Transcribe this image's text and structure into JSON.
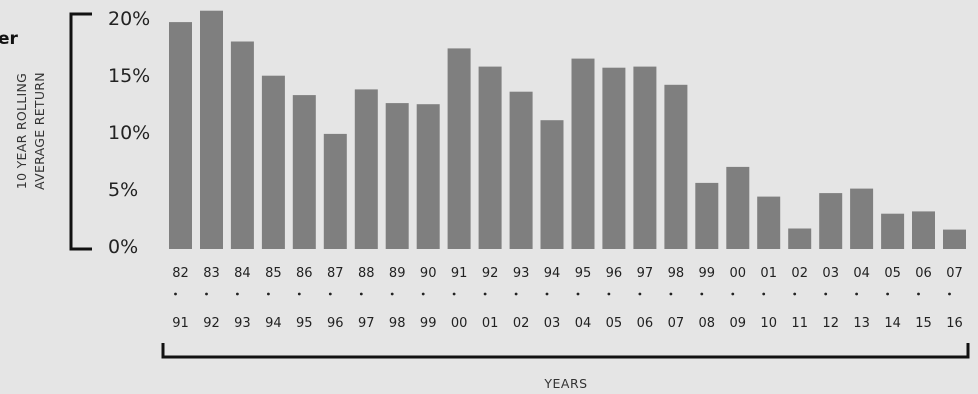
{
  "fragment_text": "er",
  "chart_data": {
    "type": "bar",
    "ylabel_line1": "10 YEAR ROLLING",
    "ylabel_line2": "AVERAGE RETURN",
    "xlabel": "YEARS",
    "yticks": [
      "0%",
      "5%",
      "10%",
      "15%",
      "20%"
    ],
    "ylim": [
      0,
      20
    ],
    "grid": false,
    "bar_color": "#7f7f7f",
    "start_years": [
      "82",
      "83",
      "84",
      "85",
      "86",
      "87",
      "88",
      "89",
      "90",
      "91",
      "92",
      "93",
      "94",
      "95",
      "96",
      "97",
      "98",
      "99",
      "00",
      "01",
      "02",
      "03",
      "04",
      "05",
      "06",
      "07"
    ],
    "end_years": [
      "91",
      "92",
      "93",
      "94",
      "95",
      "96",
      "97",
      "98",
      "99",
      "00",
      "01",
      "02",
      "03",
      "04",
      "05",
      "06",
      "07",
      "08",
      "09",
      "10",
      "11",
      "12",
      "13",
      "14",
      "15",
      "16"
    ],
    "values": [
      19.9,
      20.9,
      18.2,
      15.2,
      13.5,
      10.1,
      14.0,
      12.8,
      12.7,
      17.6,
      16.0,
      13.8,
      11.3,
      16.7,
      15.9,
      16.0,
      14.4,
      5.8,
      7.2,
      4.6,
      1.8,
      4.9,
      5.3,
      3.1,
      3.3,
      1.7
    ]
  }
}
